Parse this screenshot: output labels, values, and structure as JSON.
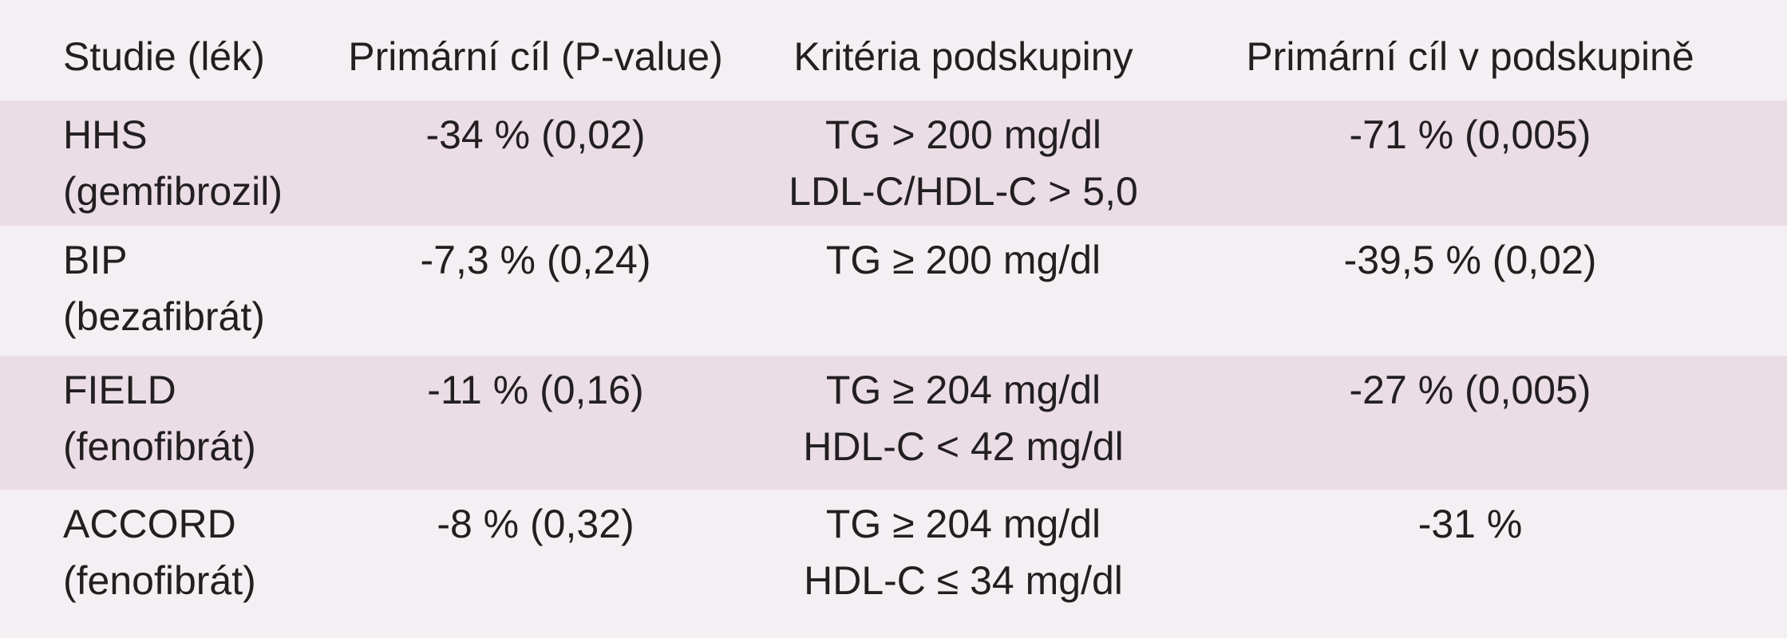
{
  "table": {
    "header": [
      "Studie (lék)",
      "Primární cíl (P-value)",
      "Kritéria podskupiny",
      "Primární cíl v podskupině"
    ],
    "rows": [
      [
        [
          "HHS",
          "(gemfibrozil)"
        ],
        [
          "-34 % (0,02)"
        ],
        [
          "TG > 200 mg/dl",
          "LDL-C/HDL-C > 5,0"
        ],
        [
          "-71 % (0,005)"
        ]
      ],
      [
        [
          "BIP",
          "(bezafibrát)"
        ],
        [
          "-7,3 % (0,24)"
        ],
        [
          "TG ≥ 200 mg/dl"
        ],
        [
          "-39,5 % (0,02)"
        ]
      ],
      [
        [
          "FIELD",
          "(fenofibrát)"
        ],
        [
          "-11 % (0,16)"
        ],
        [
          "TG ≥ 204 mg/dl",
          "HDL-C < 42 mg/dl"
        ],
        [
          "-27 % (0,005)"
        ]
      ],
      [
        [
          "ACCORD",
          "(fenofibrát)"
        ],
        [
          "-8 % (0,32)"
        ],
        [
          "TG ≥ 204 mg/dl",
          "HDL-C ≤ 34 mg/dl"
        ],
        [
          "-31 %"
        ]
      ]
    ]
  }
}
